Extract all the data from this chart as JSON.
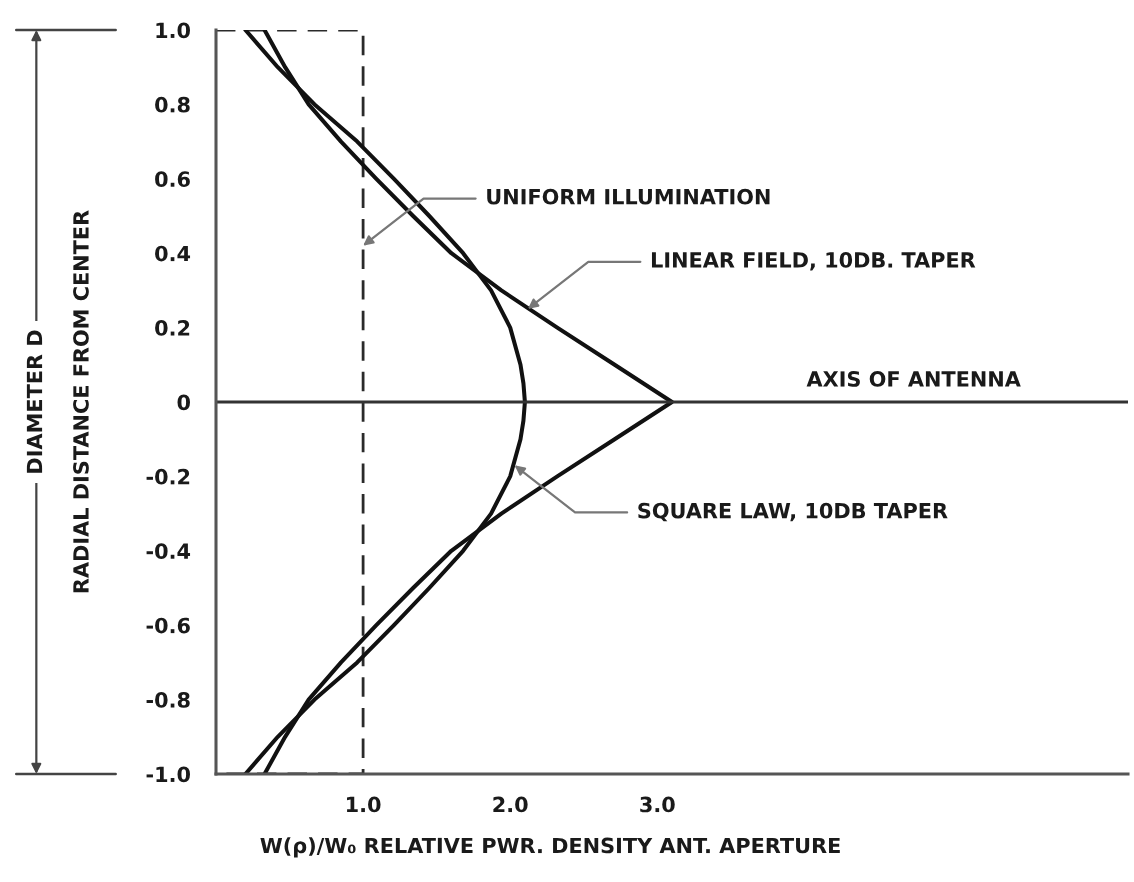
{
  "chart_data": {
    "type": "line",
    "xlabel": "W(ρ)/W₀ RELATIVE PWR. DENSITY ANT. APERTURE",
    "ylabel": "RADIAL DISTANCE FROM CENTER",
    "annotations": [
      {
        "text": "UNIFORM ILLUMINATION",
        "x": 1.0,
        "y": 0.42
      },
      {
        "text": "LINEAR FIELD, 10DB. TAPER",
        "x": 2.12,
        "y": 0.25
      },
      {
        "text": "SQUARE LAW, 10DB TAPER",
        "x": 2.03,
        "y": -0.17
      },
      "DIAMETER D"
    ],
    "line_style": "solid",
    "series": [
      {
        "color": "#2a2a2a",
        "line_style": "dashed",
        "x": [
          0,
          1.0,
          1.0,
          0
        ],
        "values": [
          1.0,
          1.0,
          -1.0,
          -1.0
        ]
      },
      {
        "color": "#111111",
        "x": [
          0.33,
          0.47,
          0.63,
          0.85,
          1.09,
          1.34,
          1.6,
          1.94,
          2.32,
          2.71,
          3.1,
          2.71,
          2.32,
          1.94,
          1.6,
          1.34,
          1.09,
          0.85,
          0.63,
          0.47,
          0.33
        ],
        "values": [
          1.0,
          0.9,
          0.8,
          0.7,
          0.6,
          0.5,
          0.4,
          0.3,
          0.2,
          0.1,
          0,
          -0.1,
          -0.2,
          -0.3,
          -0.4,
          -0.5,
          -0.6,
          -0.7,
          -0.8,
          -0.9,
          -1.0
        ]
      },
      {
        "color": "#111111",
        "x": [
          0.2,
          0.42,
          0.67,
          0.96,
          1.21,
          1.45,
          1.68,
          1.87,
          2.0,
          2.07,
          2.09,
          2.1,
          2.09,
          2.07,
          2.0,
          1.87,
          1.68,
          1.45,
          1.21,
          0.96,
          0.67,
          0.42,
          0.2
        ],
        "values": [
          1.0,
          0.9,
          0.8,
          0.7,
          0.6,
          0.5,
          0.4,
          0.3,
          0.2,
          0.1,
          0.05,
          0,
          -0.05,
          -0.1,
          -0.2,
          -0.3,
          -0.4,
          -0.5,
          -0.6,
          -0.7,
          -0.8,
          -0.9,
          -1.0
        ]
      }
    ],
    "ref_lines": [
      {
        "axis": "y",
        "value": 0,
        "label": "AXIS OF ANTENNA",
        "color": "#333333"
      }
    ],
    "xlim": [
      0,
      6.2
    ],
    "xticks": [
      {
        "value": 1,
        "label": "1.0"
      },
      {
        "value": 2,
        "label": "2.0"
      },
      {
        "value": 3,
        "label": "3.0"
      }
    ],
    "ylim": [
      -1.0,
      1.0
    ],
    "yticks": [
      {
        "value": 1,
        "label": "1.0"
      },
      0.8,
      0.6,
      0.4,
      0.2,
      0,
      -0.2,
      -0.4,
      -0.6,
      -0.8,
      {
        "value": -1,
        "label": "-1.0"
      }
    ]
  }
}
